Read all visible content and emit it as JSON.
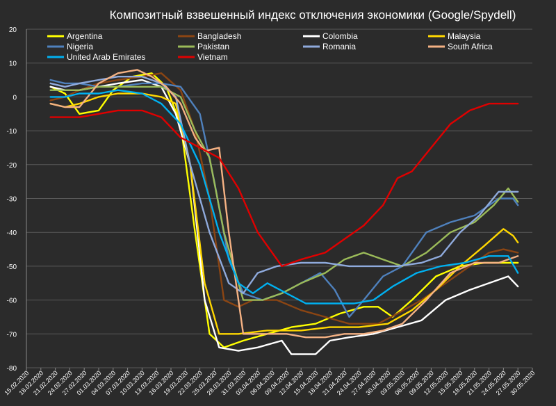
{
  "chart_data": {
    "type": "line",
    "title": "Композитный взвешенный индекс отключения экономики (Google/Spydell)",
    "ylim": [
      -80,
      20
    ],
    "yticks": [
      20,
      10,
      0,
      -10,
      -20,
      -30,
      -40,
      -50,
      -60,
      -70,
      -80
    ],
    "xlim": [
      "2020-02-15",
      "2020-05-30"
    ],
    "xtick_labels": [
      "15.02.2020",
      "18.02.2020",
      "21.02.2020",
      "24.02.2020",
      "27.02.2020",
      "01.03.2020",
      "04.03.2020",
      "07.03.2020",
      "10.03.2020",
      "13.03.2020",
      "16.03.2020",
      "19.03.2020",
      "22.03.2020",
      "25.03.2020",
      "28.03.2020",
      "31.03.2020",
      "03.04.2020",
      "06.04.2020",
      "09.04.2020",
      "12.04.2020",
      "15.04.2020",
      "18.04.2020",
      "21.04.2020",
      "24.04.2020",
      "27.04.2020",
      "30.04.2020",
      "03.05.2020",
      "06.05.2020",
      "09.05.2020",
      "12.05.2020",
      "15.05.2020",
      "18.05.2020",
      "21.05.2020",
      "24.05.2020",
      "27.05.2020",
      "30.05.2020"
    ],
    "grid": true,
    "legend_position": "top",
    "series": [
      {
        "name": "Argentina",
        "color": "#ffff00",
        "x": [
          "2020-02-20",
          "2020-02-23",
          "2020-02-26",
          "2020-03-01",
          "2020-03-04",
          "2020-03-08",
          "2020-03-12",
          "2020-03-15",
          "2020-03-18",
          "2020-03-21",
          "2020-03-24",
          "2020-03-27",
          "2020-03-31",
          "2020-04-05",
          "2020-04-10",
          "2020-04-15",
          "2020-04-20",
          "2020-04-25",
          "2020-04-28",
          "2020-05-01",
          "2020-05-05",
          "2020-05-10",
          "2020-05-15",
          "2020-05-20",
          "2020-05-25",
          "2020-05-27"
        ],
        "y": [
          3,
          1,
          -5,
          -4,
          2,
          6,
          7,
          3,
          -8,
          -40,
          -70,
          -74,
          -72,
          -70,
          -68,
          -67,
          -64,
          -62,
          -62,
          -65,
          -60,
          -53,
          -50,
          -49,
          -49,
          -49
        ]
      },
      {
        "name": "Bangladesh",
        "color": "#8b4513",
        "x": [
          "2020-02-20",
          "2020-02-23",
          "2020-02-26",
          "2020-03-01",
          "2020-03-05",
          "2020-03-10",
          "2020-03-14",
          "2020-03-18",
          "2020-03-21",
          "2020-03-24",
          "2020-03-27",
          "2020-03-30",
          "2020-04-02",
          "2020-04-07",
          "2020-04-12",
          "2020-04-17",
          "2020-04-22",
          "2020-04-28",
          "2020-05-02",
          "2020-05-07",
          "2020-05-12",
          "2020-05-17",
          "2020-05-21",
          "2020-05-24",
          "2020-05-27"
        ],
        "y": [
          -1,
          0,
          2,
          4,
          5,
          6,
          7,
          2,
          -10,
          -30,
          -60,
          -62,
          -60,
          -60,
          -63,
          -65,
          -67,
          -67,
          -64,
          -60,
          -55,
          -50,
          -46,
          -45,
          -46
        ]
      },
      {
        "name": "Colombia",
        "color": "#ffffff",
        "x": [
          "2020-02-20",
          "2020-02-23",
          "2020-02-26",
          "2020-03-01",
          "2020-03-05",
          "2020-03-10",
          "2020-03-14",
          "2020-03-17",
          "2020-03-20",
          "2020-03-23",
          "2020-03-26",
          "2020-03-30",
          "2020-04-03",
          "2020-04-08",
          "2020-04-10",
          "2020-04-15",
          "2020-04-18",
          "2020-04-22",
          "2020-04-27",
          "2020-05-02",
          "2020-05-07",
          "2020-05-12",
          "2020-05-17",
          "2020-05-21",
          "2020-05-25",
          "2020-05-27"
        ],
        "y": [
          3,
          2,
          2,
          3,
          4,
          5,
          3,
          -5,
          -20,
          -60,
          -74,
          -75,
          -74,
          -72,
          -76,
          -76,
          -72,
          -71,
          -70,
          -68,
          -66,
          -60,
          -57,
          -55,
          -53,
          -56
        ]
      },
      {
        "name": "Malaysia",
        "color": "#ffd700",
        "x": [
          "2020-02-20",
          "2020-02-23",
          "2020-02-26",
          "2020-03-01",
          "2020-03-05",
          "2020-03-10",
          "2020-03-14",
          "2020-03-17",
          "2020-03-20",
          "2020-03-23",
          "2020-03-26",
          "2020-03-30",
          "2020-04-05",
          "2020-04-12",
          "2020-04-18",
          "2020-04-24",
          "2020-04-30",
          "2020-05-05",
          "2020-05-10",
          "2020-05-15",
          "2020-05-20",
          "2020-05-24",
          "2020-05-26",
          "2020-05-27"
        ],
        "y": [
          -2,
          -3,
          -2,
          0,
          1,
          1,
          0,
          -2,
          -20,
          -55,
          -70,
          -70,
          -69,
          -69,
          -68,
          -68,
          -67,
          -63,
          -57,
          -50,
          -44,
          -39,
          -41,
          -43
        ]
      },
      {
        "name": "Nigeria",
        "color": "#4f81bd",
        "x": [
          "2020-02-20",
          "2020-02-23",
          "2020-02-26",
          "2020-03-01",
          "2020-03-05",
          "2020-03-10",
          "2020-03-14",
          "2020-03-18",
          "2020-03-22",
          "2020-03-25",
          "2020-03-28",
          "2020-03-31",
          "2020-04-04",
          "2020-04-08",
          "2020-04-12",
          "2020-04-16",
          "2020-04-19",
          "2020-04-22",
          "2020-04-25",
          "2020-04-29",
          "2020-05-03",
          "2020-05-08",
          "2020-05-13",
          "2020-05-18",
          "2020-05-23",
          "2020-05-26",
          "2020-05-27"
        ],
        "y": [
          5,
          4,
          4,
          3,
          3,
          4,
          4,
          3,
          -5,
          -25,
          -48,
          -58,
          -60,
          -58,
          -55,
          -52,
          -57,
          -65,
          -60,
          -53,
          -50,
          -40,
          -37,
          -35,
          -30,
          -30,
          -32
        ]
      },
      {
        "name": "Pakistan",
        "color": "#9bbb59",
        "x": [
          "2020-02-20",
          "2020-02-23",
          "2020-02-26",
          "2020-03-01",
          "2020-03-05",
          "2020-03-10",
          "2020-03-14",
          "2020-03-18",
          "2020-03-21",
          "2020-03-24",
          "2020-03-27",
          "2020-03-31",
          "2020-04-04",
          "2020-04-08",
          "2020-04-12",
          "2020-04-17",
          "2020-04-21",
          "2020-04-25",
          "2020-04-29",
          "2020-05-03",
          "2020-05-08",
          "2020-05-13",
          "2020-05-18",
          "2020-05-22",
          "2020-05-25",
          "2020-05-27"
        ],
        "y": [
          2,
          2,
          2,
          3,
          3,
          3,
          3,
          0,
          -10,
          -18,
          -40,
          -60,
          -60,
          -58,
          -55,
          -52,
          -48,
          -46,
          -48,
          -50,
          -46,
          -40,
          -37,
          -32,
          -27,
          -31
        ]
      },
      {
        "name": "Romania",
        "color": "#8faadc",
        "x": [
          "2020-02-20",
          "2020-02-23",
          "2020-02-26",
          "2020-03-01",
          "2020-03-05",
          "2020-03-10",
          "2020-03-14",
          "2020-03-17",
          "2020-03-20",
          "2020-03-24",
          "2020-03-28",
          "2020-03-31",
          "2020-04-03",
          "2020-04-07",
          "2020-04-12",
          "2020-04-17",
          "2020-04-22",
          "2020-04-27",
          "2020-05-02",
          "2020-05-07",
          "2020-05-11",
          "2020-05-15",
          "2020-05-19",
          "2020-05-23",
          "2020-05-27"
        ],
        "y": [
          4,
          3,
          4,
          5,
          6,
          6,
          4,
          0,
          -20,
          -40,
          -55,
          -58,
          -52,
          -50,
          -49,
          -49,
          -50,
          -50,
          -50,
          -49,
          -47,
          -40,
          -35,
          -28,
          -28
        ]
      },
      {
        "name": "South Africa",
        "color": "#f4b183",
        "x": [
          "2020-02-20",
          "2020-02-23",
          "2020-02-26",
          "2020-03-01",
          "2020-03-05",
          "2020-03-09",
          "2020-03-12",
          "2020-03-15",
          "2020-03-18",
          "2020-03-21",
          "2020-03-23",
          "2020-03-26",
          "2020-03-28",
          "2020-03-31",
          "2020-04-02",
          "2020-04-05",
          "2020-04-09",
          "2020-04-13",
          "2020-04-17",
          "2020-04-21",
          "2020-04-25",
          "2020-04-29",
          "2020-05-03",
          "2020-05-08",
          "2020-05-13",
          "2020-05-18",
          "2020-05-23",
          "2020-05-27"
        ],
        "y": [
          -2,
          -3,
          -3,
          4,
          7,
          8,
          6,
          3,
          -2,
          -12,
          -16,
          -15,
          -40,
          -70,
          -70,
          -70,
          -70,
          -71,
          -71,
          -70,
          -70,
          -69,
          -67,
          -60,
          -52,
          -49,
          -49,
          -47
        ]
      },
      {
        "name": "United Arab Emirates",
        "color": "#00b0f0",
        "x": [
          "2020-02-20",
          "2020-02-23",
          "2020-02-26",
          "2020-03-01",
          "2020-03-05",
          "2020-03-10",
          "2020-03-14",
          "2020-03-18",
          "2020-03-22",
          "2020-03-26",
          "2020-03-30",
          "2020-04-02",
          "2020-04-05",
          "2020-04-09",
          "2020-04-13",
          "2020-04-18",
          "2020-04-23",
          "2020-04-27",
          "2020-05-01",
          "2020-05-06",
          "2020-05-11",
          "2020-05-16",
          "2020-05-21",
          "2020-05-25",
          "2020-05-27"
        ],
        "y": [
          0,
          0,
          1,
          1,
          2,
          1,
          -2,
          -8,
          -20,
          -40,
          -55,
          -58,
          -55,
          -58,
          -61,
          -61,
          -61,
          -60,
          -56,
          -52,
          -50,
          -49,
          -47,
          -47,
          -52
        ]
      },
      {
        "name": "Vietnam",
        "color": "#e00000",
        "x": [
          "2020-02-20",
          "2020-02-23",
          "2020-02-26",
          "2020-03-01",
          "2020-03-05",
          "2020-03-10",
          "2020-03-14",
          "2020-03-18",
          "2020-03-22",
          "2020-03-26",
          "2020-03-30",
          "2020-04-03",
          "2020-04-08",
          "2020-04-12",
          "2020-04-17",
          "2020-04-21",
          "2020-04-25",
          "2020-04-29",
          "2020-05-02",
          "2020-05-05",
          "2020-05-09",
          "2020-05-13",
          "2020-05-17",
          "2020-05-21",
          "2020-05-25",
          "2020-05-27"
        ],
        "y": [
          -6,
          -6,
          -6,
          -5,
          -4,
          -4,
          -6,
          -12,
          -15,
          -18,
          -27,
          -40,
          -50,
          -48,
          -46,
          -42,
          -38,
          -32,
          -24,
          -22,
          -15,
          -8,
          -4,
          -2,
          -2,
          -2
        ]
      }
    ]
  }
}
